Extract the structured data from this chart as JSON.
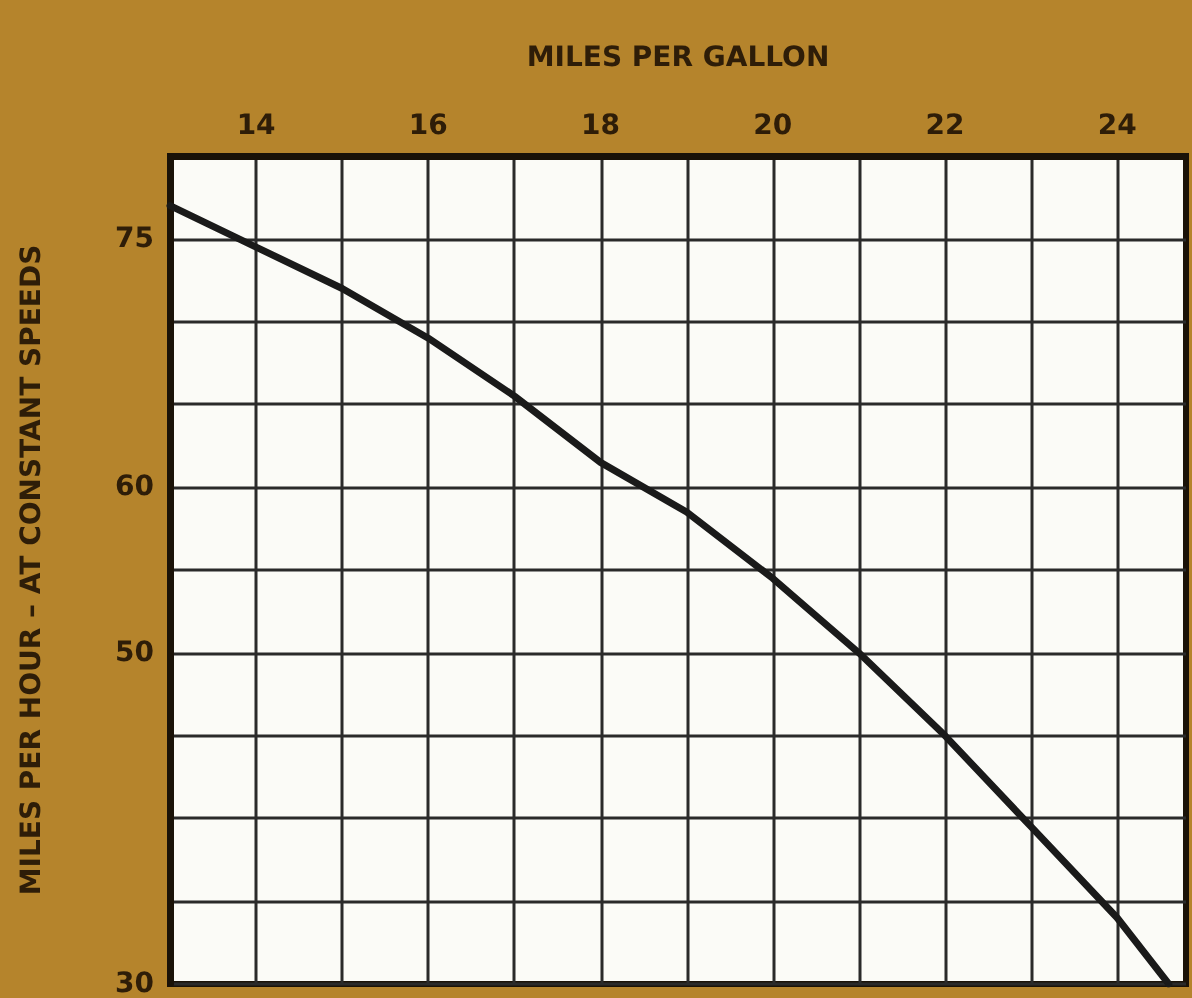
{
  "chart_data": {
    "type": "line",
    "xlabel": "MILES PER GALLON",
    "ylabel": "MILES PER HOUR – AT CONSTANT SPEEDS",
    "x": [
      13,
      14,
      15,
      16,
      17,
      18,
      19,
      20,
      21,
      22,
      23,
      24,
      24.6
    ],
    "series": [
      {
        "color": "#1a1a1a",
        "values": [
          77,
          74.5,
          72,
          69,
          65.5,
          61.5,
          58.5,
          54.5,
          50,
          45,
          39.5,
          34,
          30
        ]
      }
    ],
    "xlim": [
      13,
      24.8
    ],
    "xticks": [
      {
        "value": 13,
        "label": null
      },
      14,
      {
        "value": 15,
        "label": null
      },
      16,
      {
        "value": 17,
        "label": null
      },
      18,
      {
        "value": 19,
        "label": null
      },
      20,
      {
        "value": 21,
        "label": null
      },
      22,
      {
        "value": 23,
        "label": null
      },
      24
    ],
    "ylim": [
      30,
      80
    ],
    "yticks": [
      30,
      {
        "value": 35,
        "label": null
      },
      {
        "value": 40,
        "label": null
      },
      {
        "value": 45,
        "label": null
      },
      50,
      {
        "value": 55,
        "label": null
      },
      60,
      {
        "value": 65,
        "label": null
      },
      {
        "value": 70,
        "label": null
      },
      75,
      {
        "value": 80,
        "label": null
      }
    ],
    "grid": true,
    "marker": "none",
    "line_style": "solid"
  }
}
